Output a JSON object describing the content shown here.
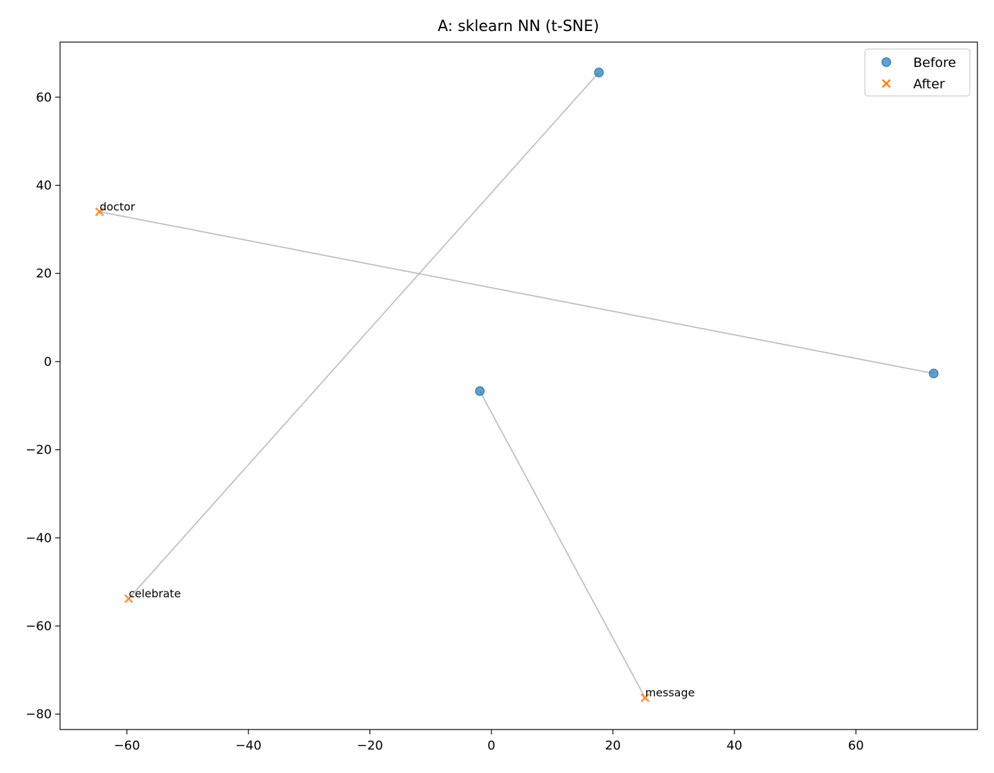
{
  "chart_data": {
    "type": "scatter",
    "title": "A: sklearn NN (t-SNE)",
    "xlabel": "",
    "ylabel": "",
    "xlim": [
      -71,
      80
    ],
    "ylim": [
      -83.5,
      72.5
    ],
    "xticks": [
      -60,
      -40,
      -20,
      0,
      20,
      40,
      60
    ],
    "yticks": [
      -80,
      -60,
      -40,
      -20,
      0,
      20,
      40,
      60
    ],
    "grid": false,
    "legend_position": "top-right",
    "series": [
      {
        "name": "Before",
        "marker": "circle",
        "color": "#1f77b4",
        "points": [
          {
            "x": 17.7,
            "y": 65.6
          },
          {
            "x": 72.8,
            "y": -2.7
          },
          {
            "x": -1.9,
            "y": -6.7
          }
        ]
      },
      {
        "name": "After",
        "marker": "x",
        "color": "#ff7f0e",
        "points": [
          {
            "x": -64.5,
            "y": 34.0,
            "label": "doctor"
          },
          {
            "x": -59.7,
            "y": -53.8,
            "label": "celebrate"
          },
          {
            "x": 25.3,
            "y": -76.3,
            "label": "message"
          }
        ]
      }
    ],
    "connections": [
      {
        "from": [
          17.7,
          65.6
        ],
        "to": [
          -59.7,
          -53.8
        ]
      },
      {
        "from": [
          72.8,
          -2.7
        ],
        "to": [
          -64.5,
          34.0
        ]
      },
      {
        "from": [
          -1.9,
          -6.7
        ],
        "to": [
          25.3,
          -76.3
        ]
      }
    ],
    "connection_color": "#bfbfbf"
  }
}
